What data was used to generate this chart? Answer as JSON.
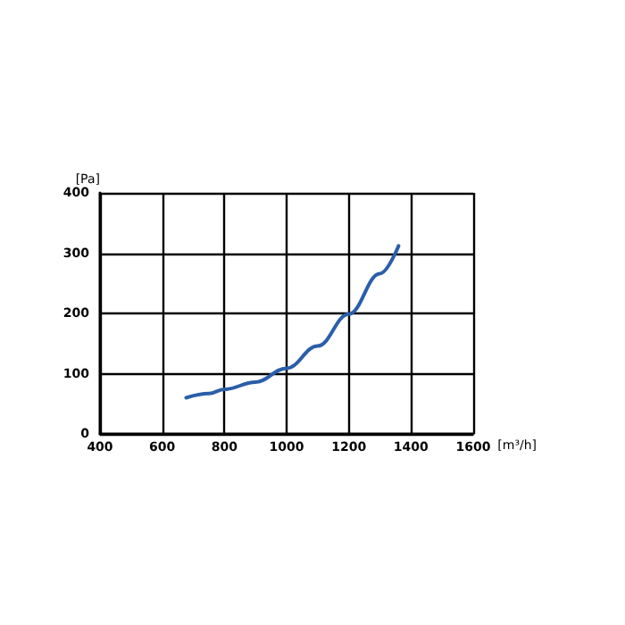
{
  "chart_data": {
    "type": "line",
    "xlabel": "[m³/h]",
    "ylabel": "[Pa]",
    "x": [
      677,
      750,
      800,
      900,
      1000,
      1100,
      1200,
      1300,
      1360
    ],
    "series": [
      {
        "color": "#2a5ea8",
        "values": [
          60,
          67,
          74,
          86,
          109,
          146,
          199,
          266,
          312
        ]
      }
    ],
    "xlim": [
      400,
      1600
    ],
    "xticks": [
      400,
      600,
      800,
      1000,
      1200,
      1400,
      1600
    ],
    "ylim": [
      0,
      400
    ],
    "yticks": [
      0,
      100,
      200,
      300,
      400
    ],
    "grid": true,
    "marker": "none",
    "line_style": "solid"
  }
}
